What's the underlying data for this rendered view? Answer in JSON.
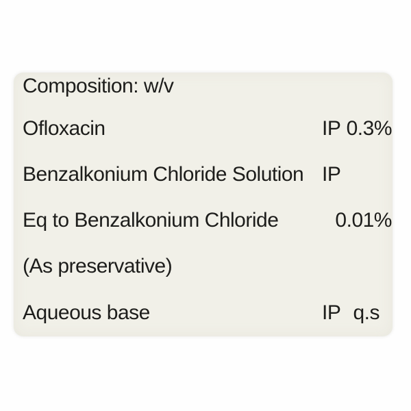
{
  "page": {
    "background_color": "#fefefe"
  },
  "label": {
    "background_color": "#f1f0e8",
    "text_color": "#1d1d1b",
    "heading": "Composition: w/v",
    "rows": [
      {
        "name": "Ofloxacin",
        "standard": "IP",
        "value": "0.3%"
      },
      {
        "name": "Benzalkonium Chloride Solution",
        "standard": "IP"
      },
      {
        "name": "Eq to Benzalkonium Chloride",
        "value": "0.01%"
      },
      {
        "name": "(As preservative)"
      },
      {
        "name": "Aqueous base",
        "standard": "IP",
        "value": "q.s"
      }
    ]
  }
}
